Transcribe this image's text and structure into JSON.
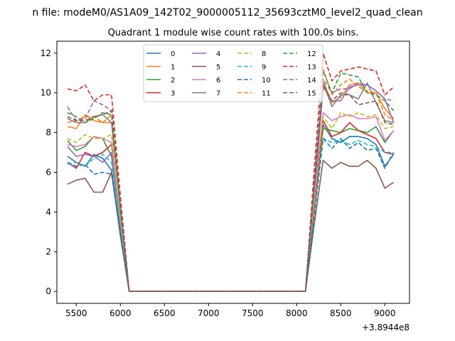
{
  "suptitle": "n file: modeM0/AS1A09_142T02_9000005112_35693cztM0_level2_quad_clean",
  "chart_data": {
    "type": "line",
    "title": "Quadrant 1 module wise count rates with 100.0s bins.",
    "xlabel": "",
    "ylabel": "",
    "x_offset_label": "+3.8944e8",
    "xlim": [
      5280,
      9280
    ],
    "ylim": [
      -0.6,
      12.6
    ],
    "xticks": [
      5500,
      6000,
      6500,
      7000,
      7500,
      8000,
      8500,
      9000
    ],
    "yticks": [
      0,
      2,
      4,
      6,
      8,
      10,
      12
    ],
    "grid": false,
    "legend_position": "upper center",
    "x": [
      5400,
      5500,
      5600,
      5700,
      5800,
      5900,
      6000,
      6100,
      6200,
      6300,
      6400,
      6500,
      6600,
      6700,
      6800,
      6900,
      7000,
      7100,
      7200,
      7300,
      7400,
      7500,
      7600,
      7700,
      7800,
      7900,
      8000,
      8100,
      8200,
      8300,
      8400,
      8500,
      8600,
      8700,
      8800,
      8900,
      9000,
      9100
    ],
    "series": [
      {
        "name": "0",
        "color": "#1f77b4",
        "dash": "solid",
        "values": [
          6.8,
          6.5,
          6.3,
          6.9,
          6.7,
          6.1,
          3.0,
          0,
          0,
          0,
          0,
          0,
          0,
          0,
          0,
          0,
          0,
          0,
          0,
          0,
          0,
          0,
          0,
          0,
          0,
          0,
          0,
          0,
          4.2,
          8.4,
          7.7,
          7.5,
          7.8,
          7.8,
          7.7,
          7.4,
          6.3,
          6.9
        ]
      },
      {
        "name": "1",
        "color": "#ff7f0e",
        "dash": "solid",
        "values": [
          8.3,
          8.2,
          8.9,
          8.6,
          8.5,
          8.5,
          4.2,
          0,
          0,
          0,
          0,
          0,
          0,
          0,
          0,
          0,
          0,
          0,
          0,
          0,
          0,
          0,
          0,
          0,
          0,
          0,
          0,
          0,
          5.2,
          10.6,
          9.5,
          9.8,
          10.4,
          10.5,
          10.0,
          10.0,
          9.2,
          8.7
        ]
      },
      {
        "name": "2",
        "color": "#2ca02c",
        "dash": "solid",
        "values": [
          7.6,
          7.1,
          7.3,
          7.8,
          7.7,
          6.8,
          3.4,
          0,
          0,
          0,
          0,
          0,
          0,
          0,
          0,
          0,
          0,
          0,
          0,
          0,
          0,
          0,
          0,
          0,
          0,
          0,
          0,
          0,
          4.6,
          8.2,
          8.1,
          8.0,
          8.2,
          8.1,
          8.0,
          8.3,
          7.5,
          8.1
        ]
      },
      {
        "name": "3",
        "color": "#d62728",
        "dash": "solid",
        "values": [
          6.5,
          6.2,
          7.0,
          6.8,
          7.0,
          7.4,
          3.3,
          0,
          0,
          0,
          0,
          0,
          0,
          0,
          0,
          0,
          0,
          0,
          0,
          0,
          0,
          0,
          0,
          0,
          0,
          0,
          0,
          0,
          4.2,
          8.6,
          7.8,
          8.0,
          8.5,
          8.1,
          7.9,
          7.7,
          7.0,
          6.9
        ]
      },
      {
        "name": "4",
        "color": "#9467bd",
        "dash": "solid",
        "values": [
          7.3,
          6.8,
          6.9,
          6.8,
          6.5,
          7.0,
          3.4,
          0,
          0,
          0,
          0,
          0,
          0,
          0,
          0,
          0,
          0,
          0,
          0,
          0,
          0,
          0,
          0,
          0,
          0,
          0,
          0,
          0,
          4.8,
          10.3,
          9.6,
          9.6,
          10.3,
          10.4,
          10.4,
          10.1,
          9.7,
          8.5
        ]
      },
      {
        "name": "5",
        "color": "#8c564b",
        "dash": "solid",
        "values": [
          5.4,
          5.6,
          5.7,
          5.0,
          5.0,
          6.0,
          2.8,
          0,
          0,
          0,
          0,
          0,
          0,
          0,
          0,
          0,
          0,
          0,
          0,
          0,
          0,
          0,
          0,
          0,
          0,
          0,
          0,
          0,
          3.4,
          6.6,
          6.2,
          6.5,
          6.3,
          6.3,
          6.6,
          6.2,
          5.2,
          5.5
        ]
      },
      {
        "name": "6",
        "color": "#e377c2",
        "dash": "solid",
        "values": [
          7.4,
          7.3,
          7.4,
          7.8,
          7.7,
          7.5,
          3.6,
          0,
          0,
          0,
          0,
          0,
          0,
          0,
          0,
          0,
          0,
          0,
          0,
          0,
          0,
          0,
          0,
          0,
          0,
          0,
          0,
          0,
          4.7,
          9.0,
          8.6,
          8.8,
          8.9,
          8.7,
          8.7,
          8.8,
          7.6,
          8.1
        ]
      },
      {
        "name": "7",
        "color": "#7f7f7f",
        "dash": "solid",
        "values": [
          8.7,
          8.5,
          8.5,
          8.8,
          8.9,
          8.5,
          4.1,
          0,
          0,
          0,
          0,
          0,
          0,
          0,
          0,
          0,
          0,
          0,
          0,
          0,
          0,
          0,
          0,
          0,
          0,
          0,
          0,
          0,
          5.3,
          10.5,
          9.3,
          9.9,
          9.9,
          9.7,
          10.5,
          9.5,
          8.6,
          8.5
        ]
      },
      {
        "name": "8",
        "color": "#bcbd22",
        "dash": "dash",
        "values": [
          7.7,
          7.5,
          7.9,
          7.7,
          7.7,
          7.9,
          3.5,
          0,
          0,
          0,
          0,
          0,
          0,
          0,
          0,
          0,
          0,
          0,
          0,
          0,
          0,
          0,
          0,
          0,
          0,
          0,
          0,
          0,
          4.4,
          8.8,
          8.2,
          9.0,
          8.8,
          9.0,
          8.8,
          8.9,
          8.2,
          8.3
        ]
      },
      {
        "name": "9",
        "color": "#17becf",
        "dash": "dash",
        "values": [
          6.4,
          6.5,
          6.3,
          6.7,
          6.9,
          6.5,
          3.2,
          0,
          0,
          0,
          0,
          0,
          0,
          0,
          0,
          0,
          0,
          0,
          0,
          0,
          0,
          0,
          0,
          0,
          0,
          0,
          0,
          0,
          4.0,
          7.7,
          7.5,
          7.6,
          7.4,
          7.6,
          7.4,
          7.3,
          7.0,
          7.0
        ]
      },
      {
        "name": "10",
        "color": "#1f77b4",
        "dash": "dash",
        "values": [
          6.5,
          6.3,
          6.4,
          5.9,
          6.0,
          5.9,
          3.0,
          0,
          0,
          0,
          0,
          0,
          0,
          0,
          0,
          0,
          0,
          0,
          0,
          0,
          0,
          0,
          0,
          0,
          0,
          0,
          0,
          0,
          3.8,
          7.7,
          7.2,
          7.7,
          7.2,
          7.5,
          7.1,
          7.2,
          6.2,
          7.0
        ]
      },
      {
        "name": "11",
        "color": "#ff7f0e",
        "dash": "dash",
        "values": [
          8.5,
          8.6,
          8.8,
          8.8,
          8.5,
          8.9,
          4.2,
          0,
          0,
          0,
          0,
          0,
          0,
          0,
          0,
          0,
          0,
          0,
          0,
          0,
          0,
          0,
          0,
          0,
          0,
          0,
          0,
          0,
          5.7,
          11.2,
          9.9,
          10.4,
          10.7,
          10.3,
          10.1,
          10.0,
          8.9,
          8.6
        ]
      },
      {
        "name": "12",
        "color": "#2ca02c",
        "dash": "dash",
        "values": [
          9.0,
          8.8,
          8.5,
          8.7,
          9.0,
          8.9,
          4.2,
          0,
          0,
          0,
          0,
          0,
          0,
          0,
          0,
          0,
          0,
          0,
          0,
          0,
          0,
          0,
          0,
          0,
          0,
          0,
          0,
          0,
          5.5,
          11.1,
          10.0,
          11.0,
          10.9,
          10.8,
          10.0,
          9.9,
          9.6,
          9.1
        ]
      },
      {
        "name": "13",
        "color": "#d62728",
        "dash": "dash",
        "values": [
          10.2,
          10.1,
          10.4,
          9.6,
          9.9,
          9.9,
          4.8,
          0,
          0,
          0,
          0,
          0,
          0,
          0,
          0,
          0,
          0,
          0,
          0,
          0,
          0,
          0,
          0,
          0,
          0,
          0,
          0,
          0,
          6.2,
          12.0,
          10.6,
          11.1,
          11.2,
          11.3,
          11.2,
          11.1,
          9.9,
          10.3
        ]
      },
      {
        "name": "14",
        "color": "#9467bd",
        "dash": "dash",
        "values": [
          9.3,
          8.6,
          8.7,
          9.6,
          9.4,
          9.1,
          4.4,
          0,
          0,
          0,
          0,
          0,
          0,
          0,
          0,
          0,
          0,
          0,
          0,
          0,
          0,
          0,
          0,
          0,
          0,
          0,
          0,
          0,
          5.6,
          10.7,
          10.0,
          10.2,
          10.2,
          10.5,
          10.4,
          10.1,
          9.7,
          9.6
        ]
      },
      {
        "name": "15",
        "color": "#8c564b",
        "dash": "dash",
        "values": [
          8.8,
          8.6,
          8.6,
          8.8,
          8.9,
          9.1,
          4.3,
          0,
          0,
          0,
          0,
          0,
          0,
          0,
          0,
          0,
          0,
          0,
          0,
          0,
          0,
          0,
          0,
          0,
          0,
          0,
          0,
          0,
          5.3,
          10.4,
          9.6,
          10.0,
          9.9,
          9.4,
          9.5,
          9.6,
          8.5,
          8.4
        ]
      }
    ]
  }
}
